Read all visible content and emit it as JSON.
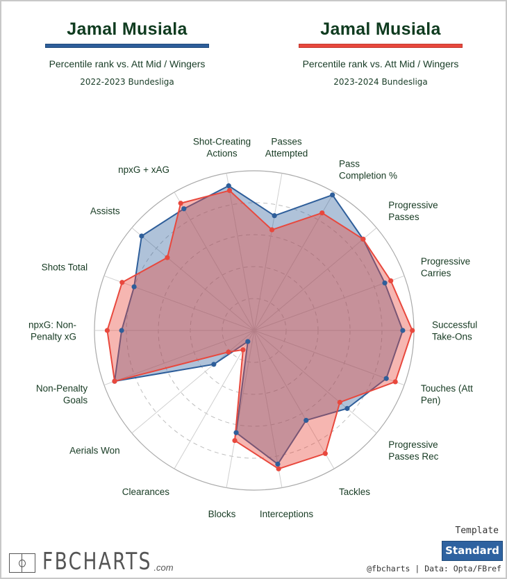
{
  "left_header": {
    "player": "Jamal Musiala",
    "subtitle": "Percentile rank vs. Att Mid / Wingers",
    "season": "2022-2023 Bundesliga",
    "color": "#2e5e9a"
  },
  "right_header": {
    "player": "Jamal Musiala",
    "subtitle": "Percentile rank vs. Att Mid / Wingers",
    "season": "2023-2024 Bundesliga",
    "color": "#e8483d"
  },
  "footer": {
    "logo_text": "FBCHARTS",
    "logo_suffix": ".com",
    "template_label": "Template",
    "template_button": "Standard",
    "credit": "@fbcharts | Data: Opta/FBref"
  },
  "chart_data": {
    "type": "radar",
    "title": "Jamal Musiala percentile rank vs. Att Mid / Wingers",
    "range": [
      0,
      100
    ],
    "grid_rings": [
      20,
      40,
      60,
      80,
      100
    ],
    "axes": [
      {
        "label": [
          "Successful",
          "Take-Ons"
        ]
      },
      {
        "label": [
          "Progressive",
          "Carries"
        ]
      },
      {
        "label": [
          "Progressive",
          "Passes"
        ]
      },
      {
        "label": [
          "Pass",
          "Completion %"
        ]
      },
      {
        "label": [
          "Passes",
          "Attempted"
        ]
      },
      {
        "label": [
          "Shot-Creating",
          "Actions"
        ]
      },
      {
        "label": [
          "npxG + xAG"
        ]
      },
      {
        "label": [
          "Assists"
        ]
      },
      {
        "label": [
          "Shots Total"
        ]
      },
      {
        "label": [
          "npxG: Non-",
          "Penalty xG"
        ]
      },
      {
        "label": [
          "Non-Penalty",
          "Goals"
        ]
      },
      {
        "label": [
          "Aerials Won"
        ]
      },
      {
        "label": [
          "Clearances"
        ]
      },
      {
        "label": [
          "Blocks"
        ]
      },
      {
        "label": [
          "Interceptions"
        ]
      },
      {
        "label": [
          "Tackles"
        ]
      },
      {
        "label": [
          "Progressive",
          "Passes Rec"
        ]
      },
      {
        "label": [
          "Touches (Att",
          "Pen)"
        ]
      }
    ],
    "series": [
      {
        "name": "2022-2023 Bundesliga",
        "color": "#2e5e9a",
        "fill": "rgba(46,94,154,0.38)",
        "values": [
          93,
          87,
          89,
          98,
          73,
          92,
          88,
          92,
          80,
          83,
          93,
          33,
          8,
          65,
          85,
          65,
          76,
          88
        ]
      },
      {
        "name": "2023-2024 Bundesliga",
        "color": "#e8483d",
        "fill": "rgba(232,72,61,0.40)",
        "values": [
          99,
          91,
          89,
          85,
          64,
          89,
          92,
          71,
          88,
          92,
          93,
          21,
          14,
          70,
          88,
          89,
          70,
          94
        ]
      }
    ]
  }
}
